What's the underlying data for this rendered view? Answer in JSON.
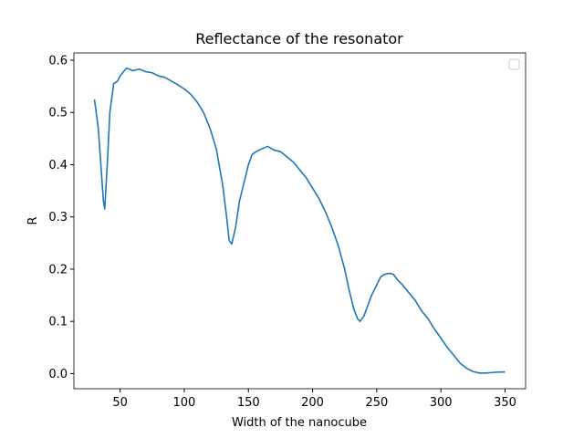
{
  "chart_data": {
    "type": "line",
    "title": "Reflectance of the resonator",
    "x_label": "Width of the nanocube",
    "y_label": "R",
    "x": [
      30,
      33,
      35,
      37,
      38,
      40,
      42,
      45,
      48,
      50,
      55,
      60,
      65,
      70,
      75,
      80,
      85,
      90,
      95,
      100,
      105,
      110,
      115,
      120,
      125,
      130,
      133,
      135,
      137,
      140,
      143,
      146,
      150,
      153,
      156,
      160,
      165,
      170,
      175,
      180,
      185,
      190,
      195,
      200,
      205,
      210,
      215,
      220,
      225,
      228,
      232,
      235,
      237,
      240,
      243,
      246,
      250,
      253,
      256,
      260,
      263,
      266,
      270,
      275,
      280,
      285,
      290,
      295,
      300,
      305,
      310,
      315,
      320,
      325,
      330,
      335,
      340,
      345,
      350
    ],
    "series": [
      {
        "color": "#1f77b4",
        "values": [
          0.525,
          0.47,
          0.4,
          0.33,
          0.315,
          0.4,
          0.5,
          0.555,
          0.56,
          0.57,
          0.585,
          0.58,
          0.583,
          0.578,
          0.576,
          0.57,
          0.567,
          0.56,
          0.553,
          0.545,
          0.535,
          0.52,
          0.5,
          0.47,
          0.43,
          0.36,
          0.3,
          0.255,
          0.248,
          0.28,
          0.33,
          0.36,
          0.4,
          0.42,
          0.425,
          0.43,
          0.435,
          0.428,
          0.425,
          0.415,
          0.405,
          0.39,
          0.375,
          0.355,
          0.335,
          0.31,
          0.28,
          0.245,
          0.2,
          0.165,
          0.125,
          0.105,
          0.1,
          0.11,
          0.13,
          0.15,
          0.17,
          0.185,
          0.19,
          0.192,
          0.19,
          0.18,
          0.17,
          0.155,
          0.14,
          0.12,
          0.105,
          0.085,
          0.068,
          0.05,
          0.035,
          0.02,
          0.01,
          0.004,
          0.001,
          0.001,
          0.002,
          0.003,
          0.003
        ]
      }
    ],
    "xlim": [
      14,
      366
    ],
    "xticks": [
      50,
      100,
      150,
      200,
      250,
      300,
      350
    ],
    "ylim": [
      -0.029,
      0.614
    ],
    "yticks": [
      {
        "value": 0,
        "label": "0.0"
      },
      0.1,
      0.2,
      0.3,
      0.4,
      0.5,
      0.6
    ],
    "grid": false
  }
}
